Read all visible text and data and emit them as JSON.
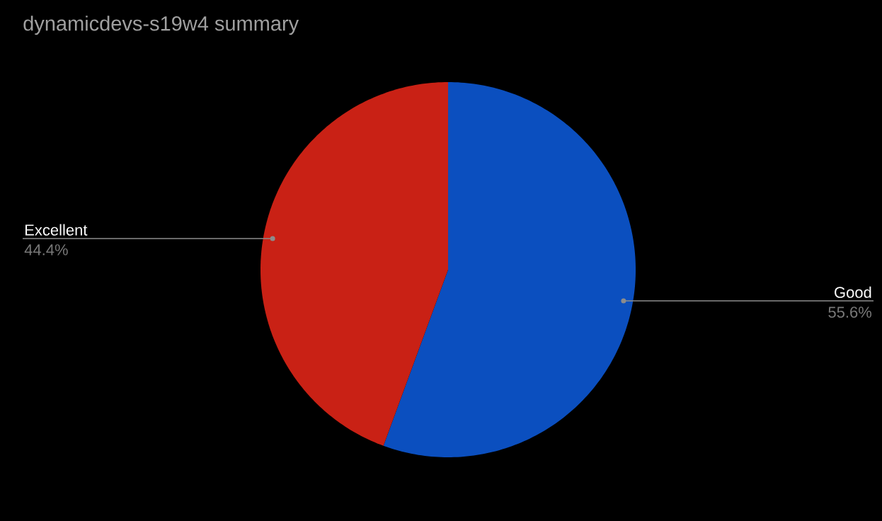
{
  "chart_data": {
    "type": "pie",
    "title": "dynamicdevs-s19w4 summary",
    "categories": [
      "Good",
      "Excellent"
    ],
    "values": [
      55.6,
      44.4
    ],
    "colors": [
      "#0b4fbf",
      "#c92115"
    ],
    "value_labels": [
      "55.6%",
      "44.4%"
    ]
  }
}
